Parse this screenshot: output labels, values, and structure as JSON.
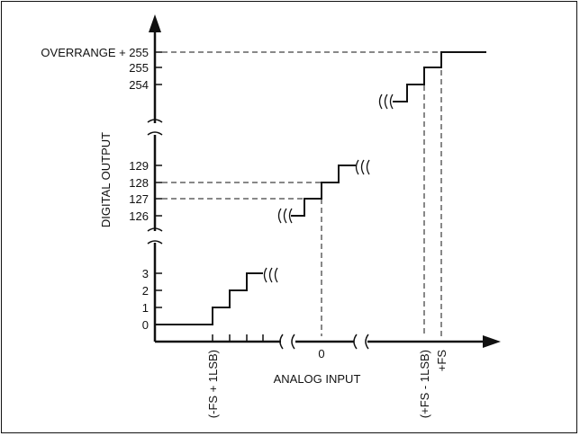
{
  "diagram": {
    "x_axis_title": "ANALOG INPUT",
    "y_axis_title": "DIGITAL OUTPUT",
    "y_labels": {
      "overrange": "OVERRANGE + 255",
      "l255": "255",
      "l254": "254",
      "l129": "129",
      "l128": "128",
      "l127": "127",
      "l126": "126",
      "l3": "3",
      "l2": "2",
      "l1": "1",
      "l0": "0"
    },
    "x_labels": {
      "neg_fs_1lsb": "(-FS + 1LSB)",
      "zero": "0",
      "pos_fs_1lsb": "(+FS - 1LSB)",
      "pos_fs": "+FS"
    },
    "colors": {
      "ink": "#111111",
      "background": "#ffffff"
    }
  }
}
